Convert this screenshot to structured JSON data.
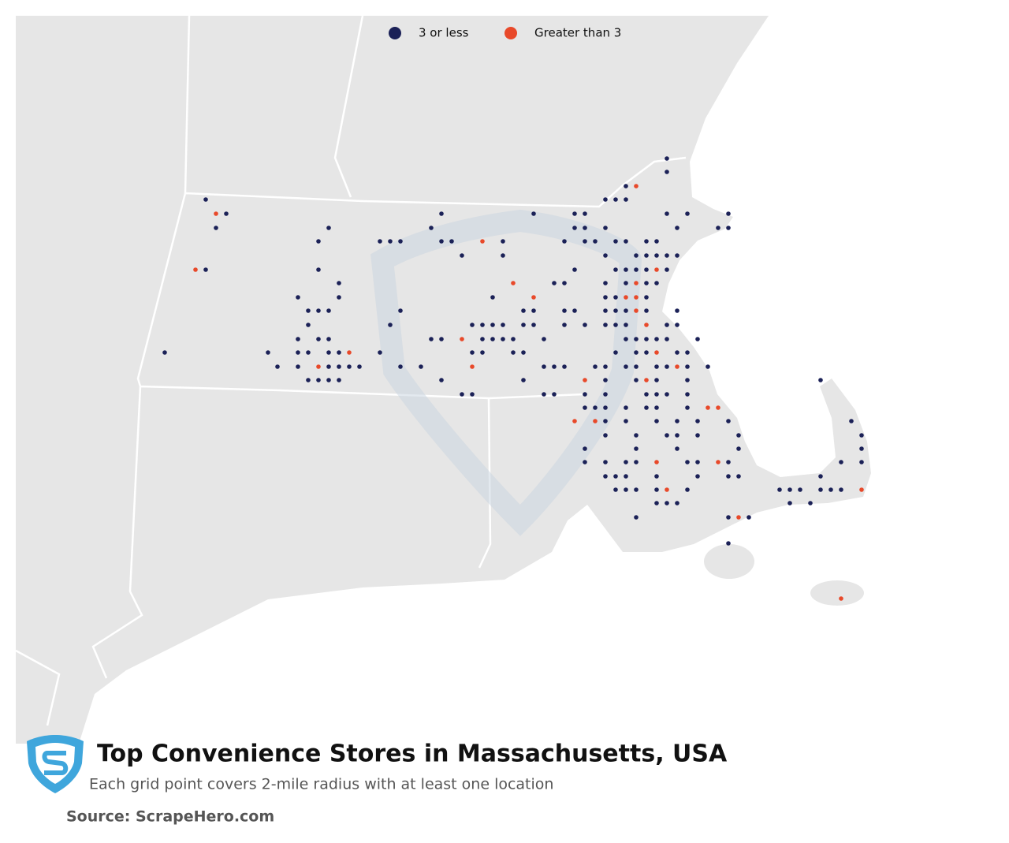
{
  "legend": [
    {
      "label": "3 or less",
      "color": "#1b2157"
    },
    {
      "label": "Greater than 3",
      "color": "#e8492a"
    }
  ],
  "title": "Top Convenience Stores in Massachusetts, USA",
  "subtitle": "Each grid point covers 2-mile radius with at least one location",
  "source": "Source: ScrapeHero.com"
}
